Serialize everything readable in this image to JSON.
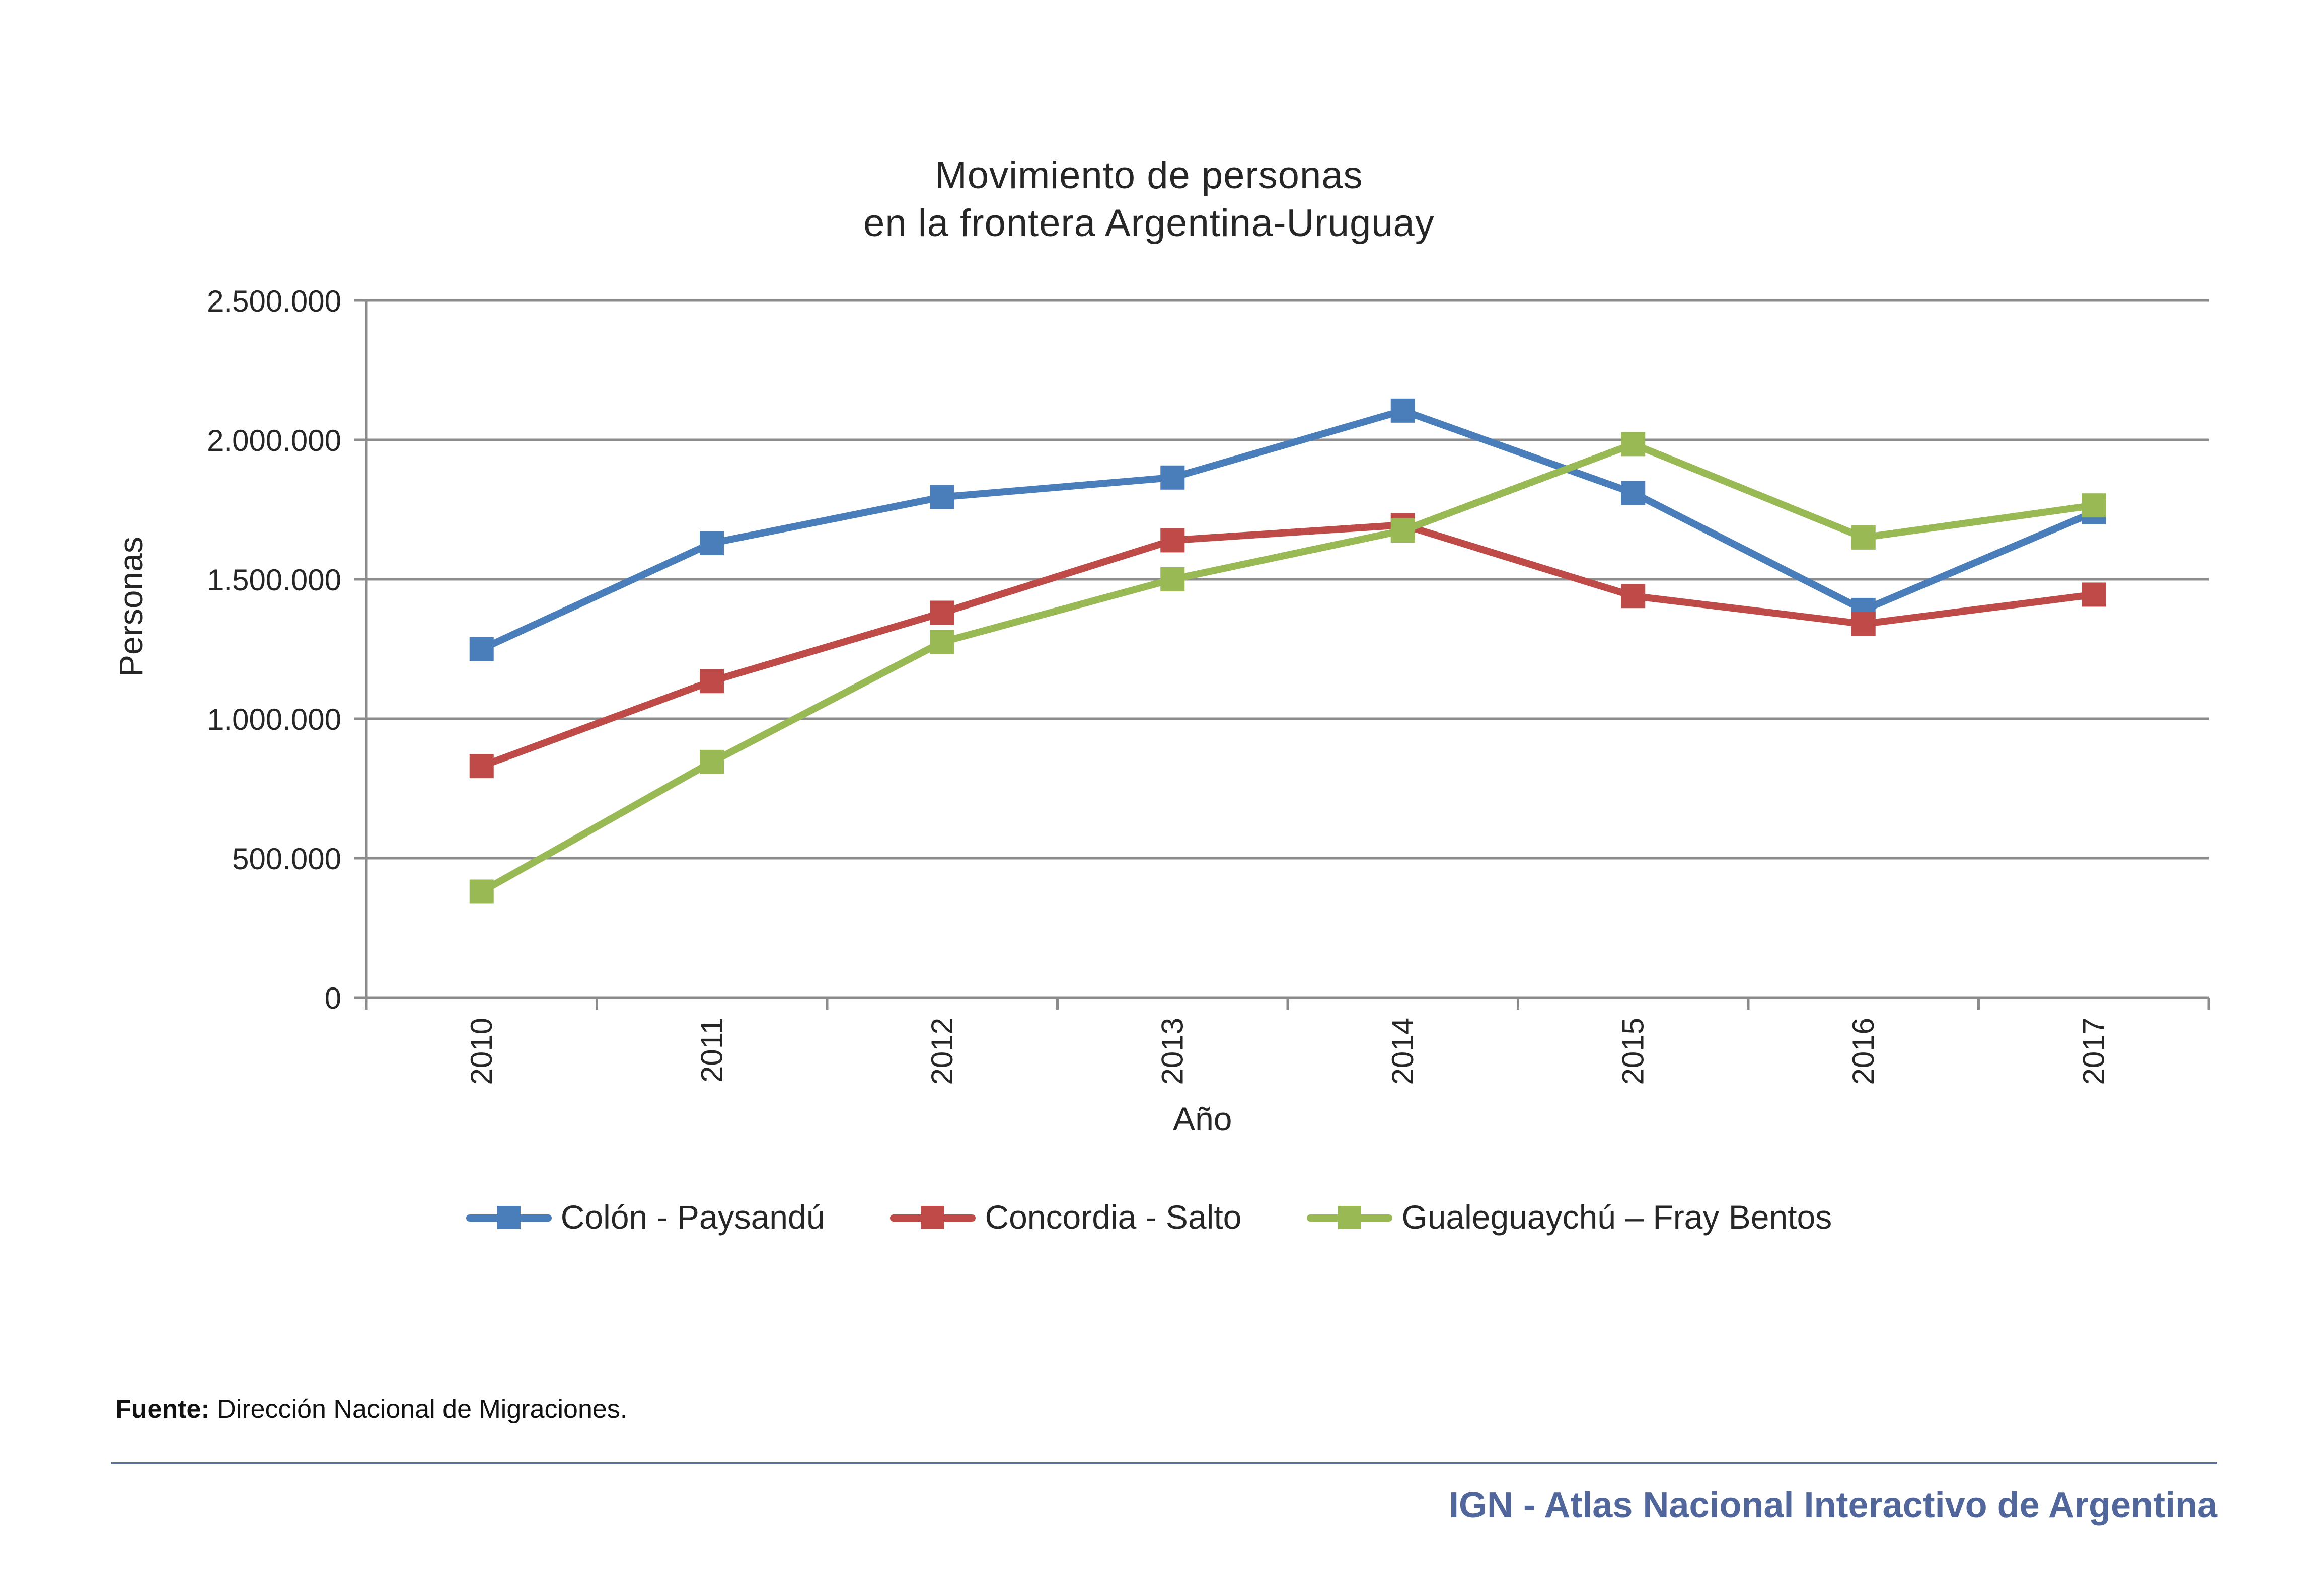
{
  "chart_data": {
    "type": "line",
    "title_lines": [
      "Movimiento de personas",
      "en la frontera Argentina-Uruguay"
    ],
    "xlabel": "Año",
    "ylabel": "Personas",
    "categories": [
      "2010",
      "2011",
      "2012",
      "2013",
      "2014",
      "2015",
      "2016",
      "2017"
    ],
    "ylim": [
      0,
      2500000
    ],
    "yticks": [
      0,
      500000,
      1000000,
      1500000,
      2000000,
      2500000
    ],
    "ytick_labels": [
      "0",
      "500.000",
      "1.000.000",
      "1.500.000",
      "2.000.000",
      "2.500.000"
    ],
    "grid": "horizontal",
    "legend_position": "bottom",
    "series": [
      {
        "name": "Colón - Paysandú",
        "color": "#4a7ebb",
        "values": [
          1250000,
          1630000,
          1795000,
          1865000,
          2105000,
          1810000,
          1390000,
          1740000
        ]
      },
      {
        "name": "Concordia - Salto",
        "color": "#be4b48",
        "values": [
          830000,
          1135000,
          1380000,
          1640000,
          1695000,
          1440000,
          1340000,
          1445000
        ]
      },
      {
        "name": "Gualeguaychú – Fray Bentos",
        "color": "#98b954",
        "values": [
          380000,
          845000,
          1275000,
          1500000,
          1675000,
          1985000,
          1650000,
          1765000
        ]
      }
    ]
  },
  "source": {
    "label": "Fuente:",
    "text": "Dirección Nacional de Migraciones."
  },
  "footer": "IGN - Atlas Nacional Interactivo de Argentina",
  "legend": [
    {
      "name": "Colón - Paysandú",
      "color": "#4a7ebb"
    },
    {
      "name": "Concordia - Salto",
      "color": "#be4b48"
    },
    {
      "name": "Gualeguaychú – Fray Bentos",
      "color": "#98b954"
    }
  ]
}
